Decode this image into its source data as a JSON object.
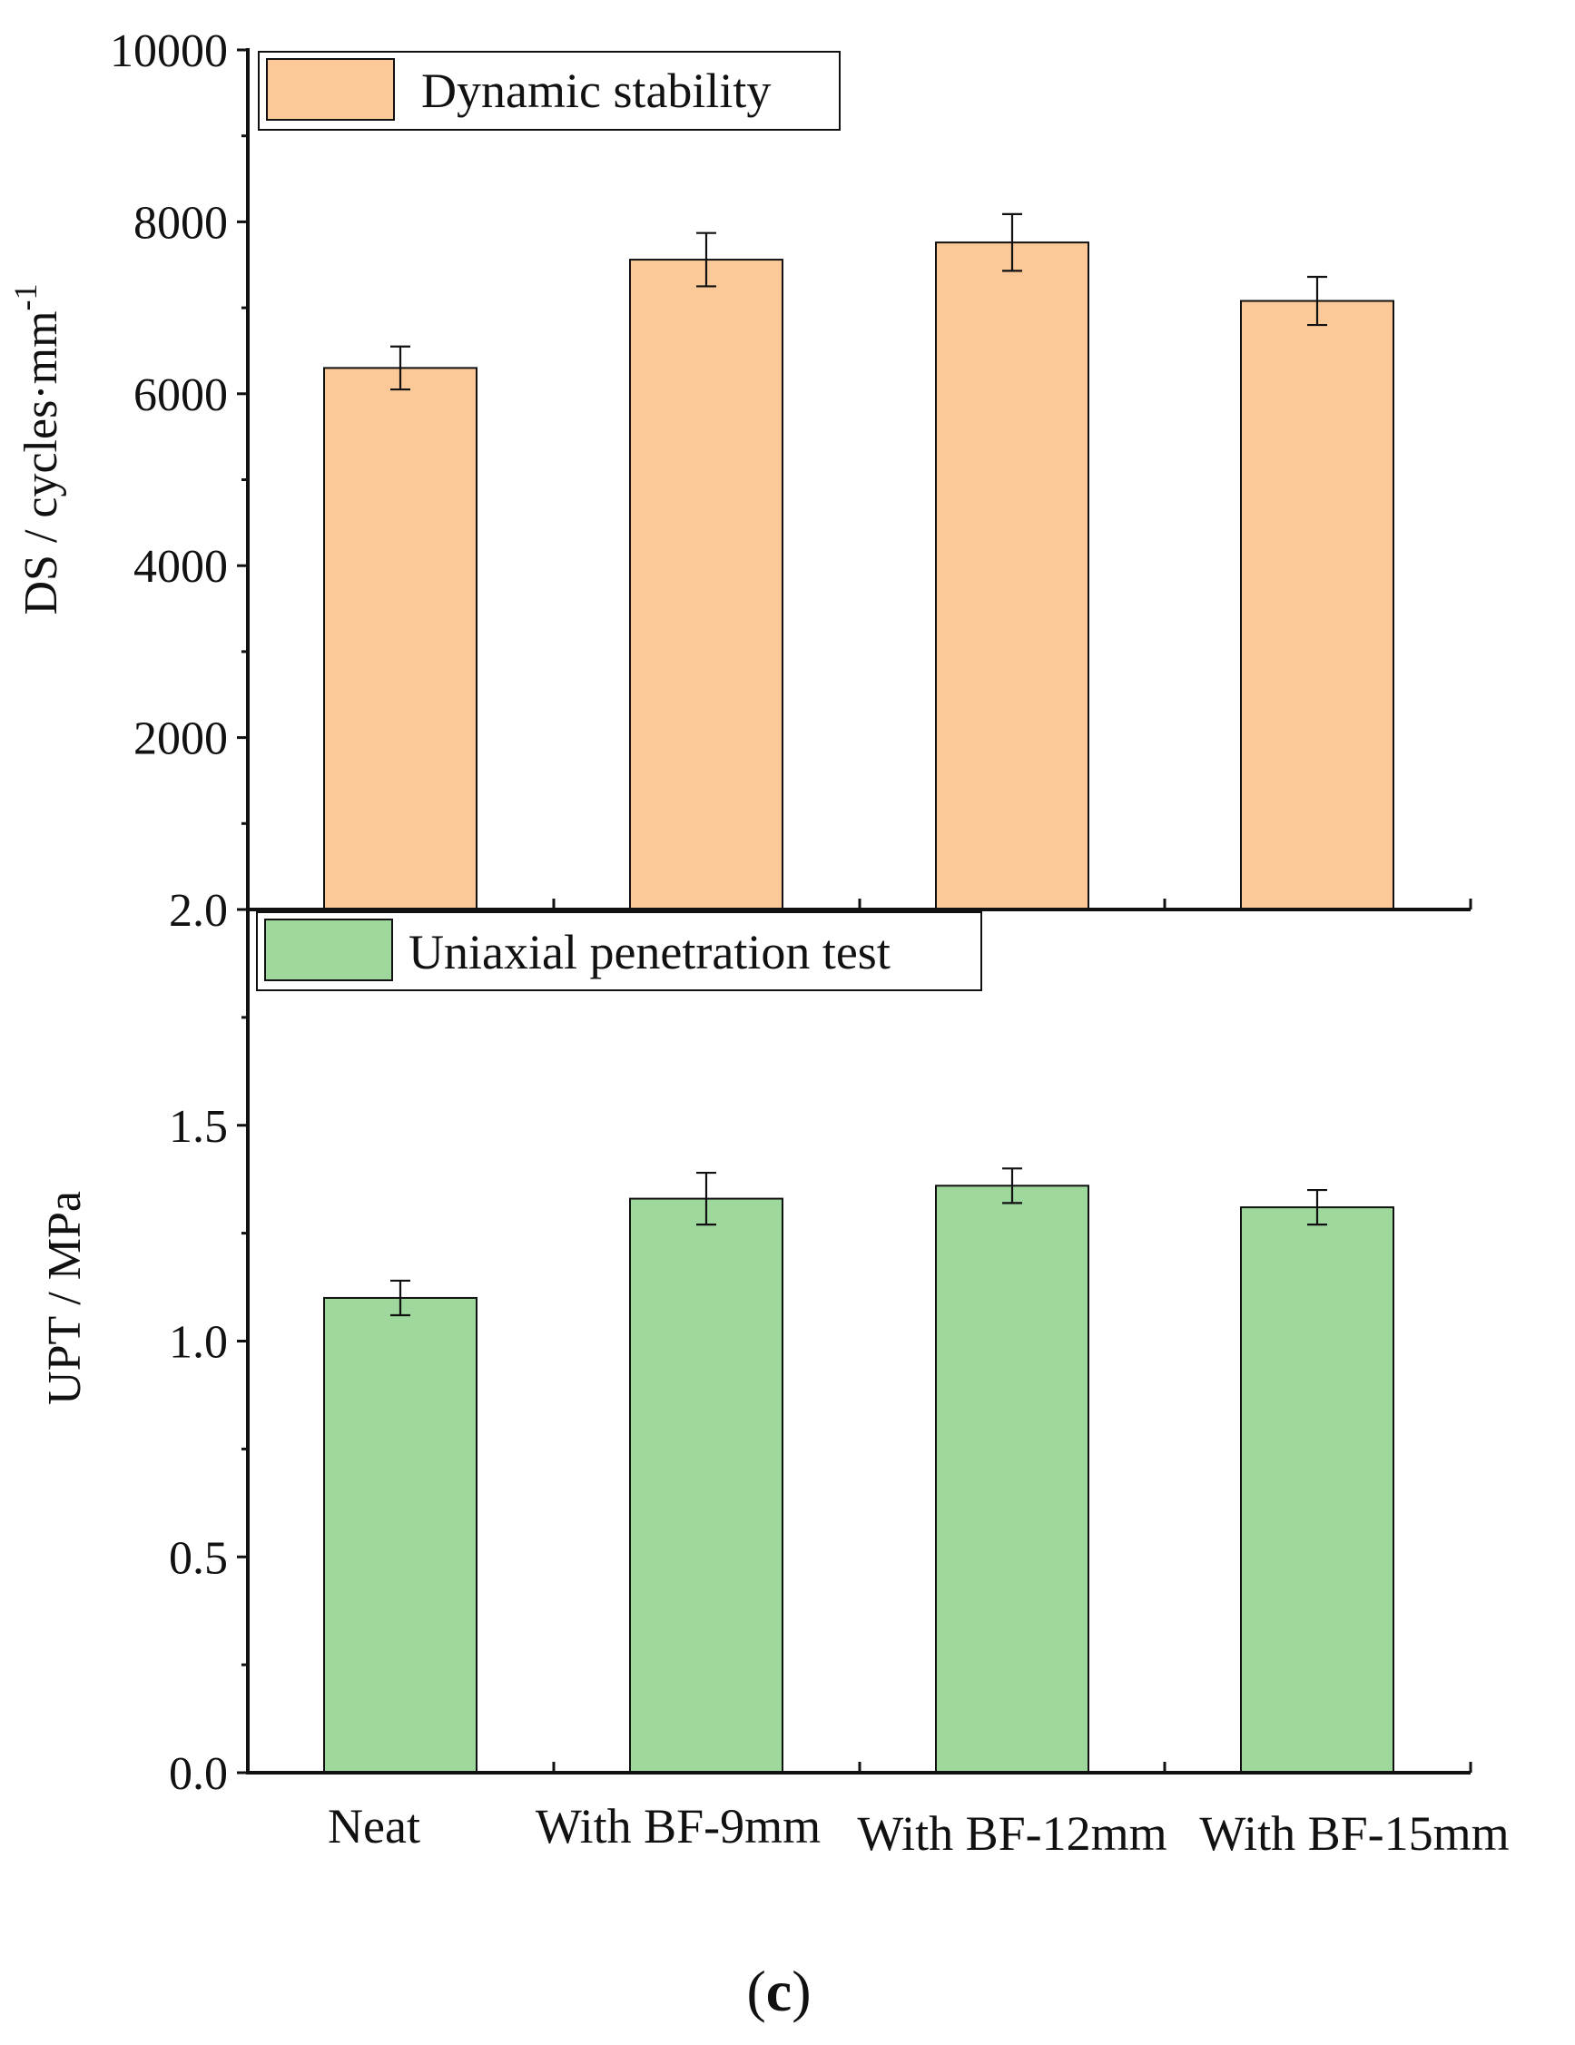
{
  "chart_data": [
    {
      "type": "bar",
      "ylabel": "DS / cycles·mm",
      "ylabel_sup": "-1",
      "ylim": [
        0,
        10000
      ],
      "yticks": [
        2000,
        4000,
        6000,
        8000,
        10000
      ],
      "ytick_labels": [
        "2000",
        "4000",
        "6000",
        "8000",
        "10000"
      ],
      "categories": [
        "Neat",
        "With BF-9mm",
        "With BF-12mm",
        "With BF-15mm"
      ],
      "series": [
        {
          "name": "Dynamic stability",
          "color": "#FBC898",
          "values": [
            6300,
            7560,
            7760,
            7080
          ],
          "errors": [
            250,
            310,
            330,
            280
          ]
        }
      ],
      "legend": "top-left"
    },
    {
      "type": "bar",
      "ylabel": "UPT / MPa",
      "ylim": [
        0,
        2.0
      ],
      "yticks": [
        0.0,
        0.5,
        1.0,
        1.5,
        2.0
      ],
      "ytick_labels": [
        "0.0",
        "0.5",
        "1.0",
        "1.5",
        "2.0"
      ],
      "categories": [
        "Neat",
        "With BF-9mm",
        "With BF-12mm",
        "With BF-15mm"
      ],
      "series": [
        {
          "name": "Uniaxial penetration test",
          "color": "#9ED89C",
          "values": [
            1.1,
            1.33,
            1.36,
            1.31
          ],
          "errors": [
            0.04,
            0.06,
            0.04,
            0.04
          ]
        }
      ],
      "legend": "top-left"
    }
  ],
  "panel_label": {
    "open": "(",
    "letter": "c",
    "close": ")"
  }
}
